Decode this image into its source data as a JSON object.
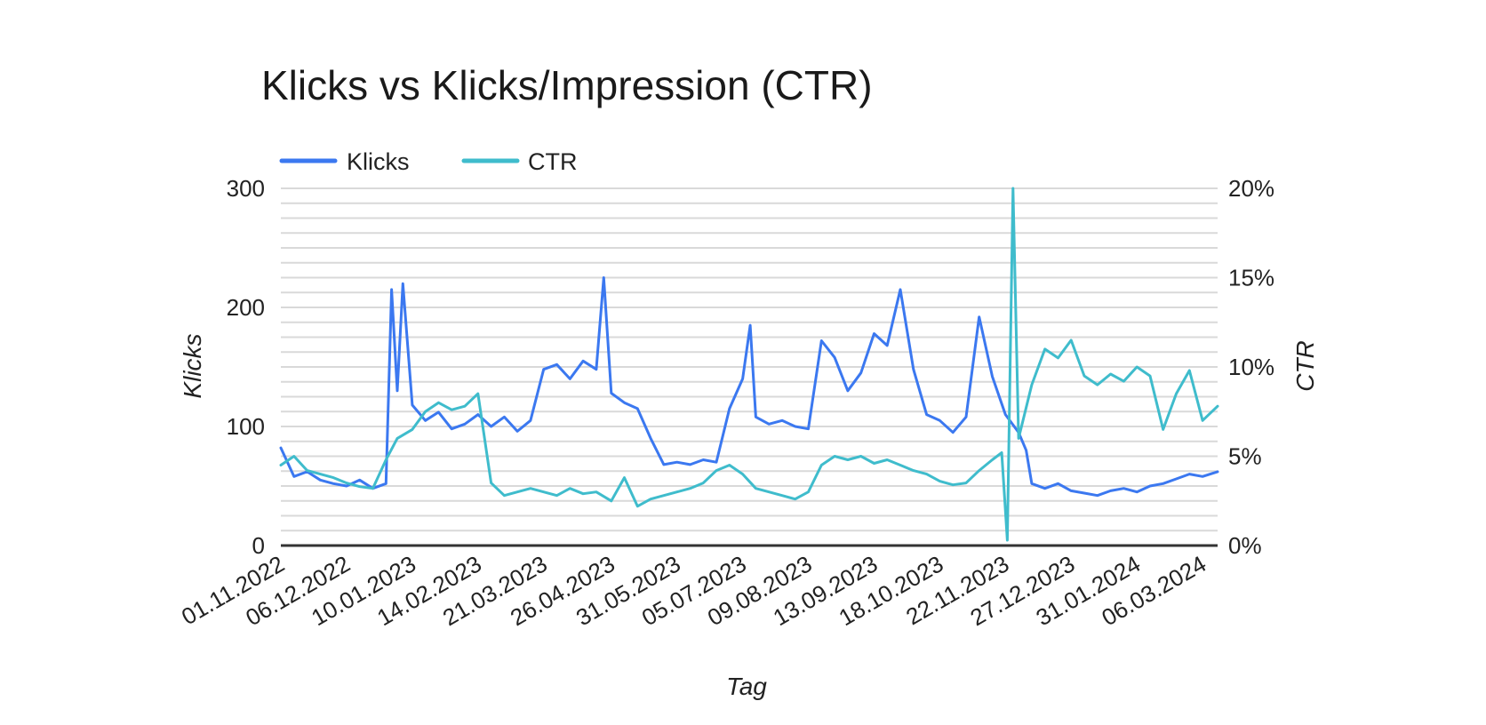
{
  "chart_data": {
    "type": "line",
    "title": "Klicks vs Klicks/Impression (CTR)",
    "xlabel": "Tag",
    "ylabel": "Klicks",
    "y2label": "CTR",
    "ylim": [
      0,
      300
    ],
    "y2lim": [
      0,
      20
    ],
    "y_ticks": [
      "0",
      "100",
      "200",
      "300"
    ],
    "y2_ticks": [
      "0%",
      "5%",
      "10%",
      "15%",
      "20%"
    ],
    "x_ticks": [
      "01.11.2022",
      "06.12.2022",
      "10.01.2023",
      "14.02.2023",
      "21.03.2023",
      "26.04.2023",
      "31.05.2023",
      "05.07.2023",
      "09.08.2023",
      "13.09.2023",
      "18.10.2023",
      "22.11.2023",
      "27.12.2023",
      "31.01.2024",
      "06.03.2024"
    ],
    "x_range": [
      "01.11.2022",
      "14.03.2024"
    ],
    "legend_position": "top-left",
    "grid": true,
    "series": [
      {
        "name": "Klicks",
        "axis": "left",
        "color": "#3b78f0",
        "points": [
          [
            "01.11.2022",
            82
          ],
          [
            "08.11.2022",
            58
          ],
          [
            "15.11.2022",
            62
          ],
          [
            "22.11.2022",
            55
          ],
          [
            "29.11.2022",
            52
          ],
          [
            "06.12.2022",
            50
          ],
          [
            "13.12.2022",
            55
          ],
          [
            "20.12.2022",
            48
          ],
          [
            "27.12.2022",
            52
          ],
          [
            "30.12.2022",
            215
          ],
          [
            "02.01.2023",
            130
          ],
          [
            "05.01.2023",
            220
          ],
          [
            "10.01.2023",
            118
          ],
          [
            "17.01.2023",
            105
          ],
          [
            "24.01.2023",
            112
          ],
          [
            "31.01.2023",
            98
          ],
          [
            "07.02.2023",
            102
          ],
          [
            "14.02.2023",
            110
          ],
          [
            "21.02.2023",
            100
          ],
          [
            "28.02.2023",
            108
          ],
          [
            "07.03.2023",
            96
          ],
          [
            "14.03.2023",
            105
          ],
          [
            "21.03.2023",
            148
          ],
          [
            "28.03.2023",
            152
          ],
          [
            "04.04.2023",
            140
          ],
          [
            "11.04.2023",
            155
          ],
          [
            "18.04.2023",
            148
          ],
          [
            "22.04.2023",
            225
          ],
          [
            "26.04.2023",
            128
          ],
          [
            "03.05.2023",
            120
          ],
          [
            "10.05.2023",
            115
          ],
          [
            "17.05.2023",
            90
          ],
          [
            "24.05.2023",
            68
          ],
          [
            "31.05.2023",
            70
          ],
          [
            "07.06.2023",
            68
          ],
          [
            "14.06.2023",
            72
          ],
          [
            "21.06.2023",
            70
          ],
          [
            "28.06.2023",
            115
          ],
          [
            "05.07.2023",
            140
          ],
          [
            "09.07.2023",
            185
          ],
          [
            "12.07.2023",
            108
          ],
          [
            "19.07.2023",
            102
          ],
          [
            "26.07.2023",
            105
          ],
          [
            "02.08.2023",
            100
          ],
          [
            "09.08.2023",
            98
          ],
          [
            "16.08.2023",
            172
          ],
          [
            "23.08.2023",
            158
          ],
          [
            "30.08.2023",
            130
          ],
          [
            "06.09.2023",
            145
          ],
          [
            "13.09.2023",
            178
          ],
          [
            "20.09.2023",
            168
          ],
          [
            "27.09.2023",
            215
          ],
          [
            "04.10.2023",
            148
          ],
          [
            "11.10.2023",
            110
          ],
          [
            "18.10.2023",
            105
          ],
          [
            "25.10.2023",
            95
          ],
          [
            "01.11.2023",
            108
          ],
          [
            "08.11.2023",
            192
          ],
          [
            "15.11.2023",
            142
          ],
          [
            "22.11.2023",
            110
          ],
          [
            "29.11.2023",
            95
          ],
          [
            "03.12.2023",
            80
          ],
          [
            "06.12.2023",
            52
          ],
          [
            "13.12.2023",
            48
          ],
          [
            "20.12.2023",
            52
          ],
          [
            "27.12.2023",
            46
          ],
          [
            "03.01.2024",
            44
          ],
          [
            "10.01.2024",
            42
          ],
          [
            "17.01.2024",
            46
          ],
          [
            "24.01.2024",
            48
          ],
          [
            "31.01.2024",
            45
          ],
          [
            "07.02.2024",
            50
          ],
          [
            "14.02.2024",
            52
          ],
          [
            "21.02.2024",
            56
          ],
          [
            "28.02.2024",
            60
          ],
          [
            "06.03.2024",
            58
          ],
          [
            "14.03.2024",
            62
          ]
        ]
      },
      {
        "name": "CTR",
        "axis": "right",
        "color": "#3fbccc",
        "points": [
          [
            "01.11.2022",
            4.5
          ],
          [
            "08.11.2022",
            5.0
          ],
          [
            "15.11.2022",
            4.2
          ],
          [
            "22.11.2022",
            4.0
          ],
          [
            "29.11.2022",
            3.8
          ],
          [
            "06.12.2022",
            3.5
          ],
          [
            "13.12.2022",
            3.3
          ],
          [
            "20.12.2022",
            3.2
          ],
          [
            "27.12.2022",
            4.8
          ],
          [
            "02.01.2023",
            6.0
          ],
          [
            "10.01.2023",
            6.5
          ],
          [
            "17.01.2023",
            7.5
          ],
          [
            "24.01.2023",
            8.0
          ],
          [
            "31.01.2023",
            7.6
          ],
          [
            "07.02.2023",
            7.8
          ],
          [
            "14.02.2023",
            8.5
          ],
          [
            "21.02.2023",
            3.5
          ],
          [
            "28.02.2023",
            2.8
          ],
          [
            "07.03.2023",
            3.0
          ],
          [
            "14.03.2023",
            3.2
          ],
          [
            "21.03.2023",
            3.0
          ],
          [
            "28.03.2023",
            2.8
          ],
          [
            "04.04.2023",
            3.2
          ],
          [
            "11.04.2023",
            2.9
          ],
          [
            "18.04.2023",
            3.0
          ],
          [
            "26.04.2023",
            2.5
          ],
          [
            "03.05.2023",
            3.8
          ],
          [
            "10.05.2023",
            2.2
          ],
          [
            "17.05.2023",
            2.6
          ],
          [
            "24.05.2023",
            2.8
          ],
          [
            "31.05.2023",
            3.0
          ],
          [
            "07.06.2023",
            3.2
          ],
          [
            "14.06.2023",
            3.5
          ],
          [
            "21.06.2023",
            4.2
          ],
          [
            "28.06.2023",
            4.5
          ],
          [
            "05.07.2023",
            4.0
          ],
          [
            "12.07.2023",
            3.2
          ],
          [
            "19.07.2023",
            3.0
          ],
          [
            "26.07.2023",
            2.8
          ],
          [
            "02.08.2023",
            2.6
          ],
          [
            "09.08.2023",
            3.0
          ],
          [
            "16.08.2023",
            4.5
          ],
          [
            "23.08.2023",
            5.0
          ],
          [
            "30.08.2023",
            4.8
          ],
          [
            "06.09.2023",
            5.0
          ],
          [
            "13.09.2023",
            4.6
          ],
          [
            "20.09.2023",
            4.8
          ],
          [
            "27.09.2023",
            4.5
          ],
          [
            "04.10.2023",
            4.2
          ],
          [
            "11.10.2023",
            4.0
          ],
          [
            "18.10.2023",
            3.6
          ],
          [
            "25.10.2023",
            3.4
          ],
          [
            "01.11.2023",
            3.5
          ],
          [
            "08.11.2023",
            4.2
          ],
          [
            "15.11.2023",
            4.8
          ],
          [
            "20.11.2023",
            5.2
          ],
          [
            "23.11.2023",
            0.3
          ],
          [
            "26.11.2023",
            20.0
          ],
          [
            "29.11.2023",
            6.0
          ],
          [
            "06.12.2023",
            9.0
          ],
          [
            "13.12.2023",
            11.0
          ],
          [
            "20.12.2023",
            10.5
          ],
          [
            "27.12.2023",
            11.5
          ],
          [
            "03.01.2024",
            9.5
          ],
          [
            "10.01.2024",
            9.0
          ],
          [
            "17.01.2024",
            9.6
          ],
          [
            "24.01.2024",
            9.2
          ],
          [
            "31.01.2024",
            10.0
          ],
          [
            "07.02.2024",
            9.5
          ],
          [
            "14.02.2024",
            6.5
          ],
          [
            "21.02.2024",
            8.5
          ],
          [
            "28.02.2024",
            9.8
          ],
          [
            "06.03.2024",
            7.0
          ],
          [
            "14.03.2024",
            7.8
          ]
        ]
      }
    ]
  }
}
